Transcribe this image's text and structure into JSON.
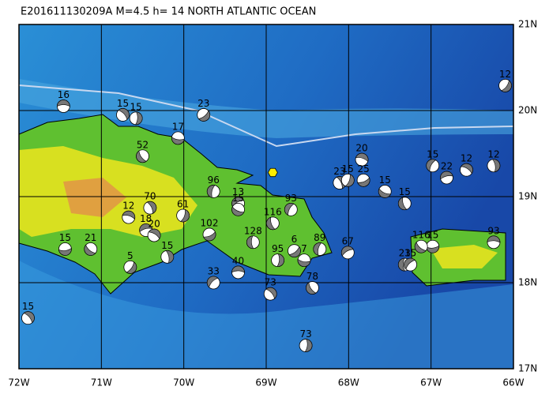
{
  "chart_data": {
    "type": "focal-map",
    "title": "E201611130209A M=4.5 h= 14 NORTH ATLANTIC OCEAN",
    "xlim": [
      -72,
      -66
    ],
    "ylim": [
      17,
      21
    ],
    "xticks": [
      {
        "value": -72,
        "label": "72W"
      },
      {
        "value": -71,
        "label": "71W"
      },
      {
        "value": -70,
        "label": "70W"
      },
      {
        "value": -69,
        "label": "69W"
      },
      {
        "value": -68,
        "label": "68W"
      },
      {
        "value": -67,
        "label": "67W"
      },
      {
        "value": -66,
        "label": "66W"
      }
    ],
    "yticks": [
      {
        "value": 17,
        "label": "17N"
      },
      {
        "value": 18,
        "label": "18N"
      },
      {
        "value": 19,
        "label": "19N"
      },
      {
        "value": 20,
        "label": "20N"
      },
      {
        "value": 21,
        "label": "21N"
      }
    ],
    "grid": true,
    "epicenter": {
      "lon": -68.92,
      "lat": 19.28,
      "color": "#ffee00"
    },
    "events": {
      "lon": [
        -71.46,
        -70.74,
        -70.58,
        -69.76,
        -70.07,
        -70.5,
        -69.64,
        -69.34,
        -70.67,
        -70.41,
        -70.01,
        -69.69,
        -69.34,
        -68.92,
        -68.7,
        -70.46,
        -70.36,
        -70.2,
        -70.65,
        -71.44,
        -71.13,
        -69.16,
        -69.64,
        -69.34,
        -68.95,
        -68.86,
        -68.66,
        -68.54,
        -68.44,
        -68.35,
        -68.01,
        -67.84,
        -68.11,
        -68.01,
        -67.82,
        -67.56,
        -67.32,
        -66.98,
        -66.81,
        -66.57,
        -66.24,
        -66.1,
        -66.98,
        -67.12,
        -67.32,
        -67.25,
        -66.24,
        -71.89,
        -68.52
      ],
      "lat": [
        20.05,
        19.95,
        19.91,
        19.95,
        19.68,
        19.47,
        19.06,
        18.92,
        18.76,
        18.87,
        18.78,
        18.56,
        18.85,
        18.69,
        18.85,
        18.61,
        18.55,
        18.3,
        18.18,
        18.39,
        18.39,
        18.47,
        18.0,
        18.12,
        17.87,
        18.26,
        18.37,
        18.26,
        17.94,
        18.39,
        18.35,
        19.43,
        19.16,
        19.19,
        19.19,
        19.06,
        18.92,
        19.36,
        19.22,
        19.31,
        19.36,
        20.29,
        18.42,
        18.42,
        18.21,
        18.21,
        18.47,
        17.59,
        17.27
      ],
      "labels": [
        "16",
        "15",
        "15",
        "23",
        "17",
        "52",
        "96",
        "13",
        "12",
        "70",
        "61",
        "102",
        "15",
        "116",
        "93",
        "18",
        "20",
        "15",
        "5",
        "15",
        "21",
        "128",
        "33",
        "40",
        "73",
        "95",
        "6",
        "7",
        "78",
        "89",
        "67",
        "20",
        "23",
        "15",
        "25",
        "15",
        "15",
        "15",
        "22",
        "12",
        "12",
        "12",
        "15",
        "116",
        "23",
        "15",
        "93",
        "15",
        "73"
      ]
    }
  }
}
